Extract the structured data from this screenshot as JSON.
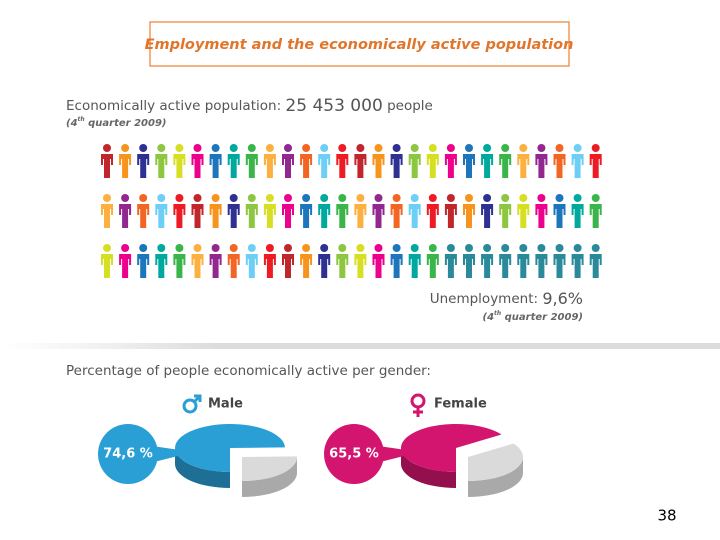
{
  "title": "Employment and the economically active population",
  "active_population": {
    "label": "Economically active population:",
    "value": "25 453 000",
    "unit": "people",
    "period": {
      "pre": "(4",
      "sup": "th",
      "post": " quarter 2009)"
    }
  },
  "unemployment": {
    "label": "Unemployment:",
    "value": "9,6%",
    "period": {
      "pre": "(4",
      "sup": "th",
      "post": " quarter 2009)"
    }
  },
  "gender": {
    "heading": "Percentage of people economically active per gender:",
    "charts": [
      {
        "name": "Male",
        "value": 74.6,
        "value_label": "74,6 %",
        "color": "#2a9fd6"
      },
      {
        "name": "Female",
        "value": 65.5,
        "value_label": "65,5 %",
        "color": "#d3156f"
      }
    ]
  },
  "page_number": "38"
}
